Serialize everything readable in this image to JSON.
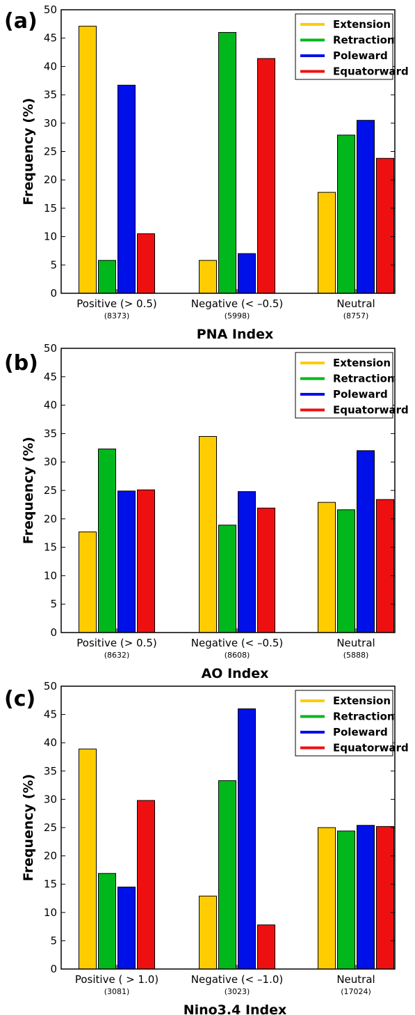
{
  "colors": {
    "Extension": "#ffcc00",
    "Retraction": "#00b81c",
    "Poleward": "#0010e8",
    "Equatorward": "#ee1010"
  },
  "chart_data": [
    {
      "type": "bar",
      "panel": "(a)",
      "title": "",
      "xlabel": "PNA Index",
      "ylabel": "Frequency (%)",
      "ylim": [
        0,
        50
      ],
      "yticks": [
        0,
        5,
        10,
        15,
        20,
        25,
        30,
        35,
        40,
        45,
        50
      ],
      "categories": [
        "Positive (> 0.5)",
        "Negative (< –0.5)",
        "Neutral"
      ],
      "counts": [
        "(8373)",
        "(5998)",
        "(8757)"
      ],
      "legend": "top-right",
      "series": [
        {
          "name": "Extension",
          "values": [
            47.1,
            5.8,
            17.8
          ]
        },
        {
          "name": "Retraction",
          "values": [
            5.8,
            46.0,
            27.9
          ]
        },
        {
          "name": "Poleward",
          "values": [
            36.7,
            7.0,
            30.5
          ]
        },
        {
          "name": "Equatorward",
          "values": [
            10.5,
            41.4,
            23.8
          ]
        }
      ]
    },
    {
      "type": "bar",
      "panel": "(b)",
      "title": "",
      "xlabel": "AO Index",
      "ylabel": "Frequency (%)",
      "ylim": [
        0,
        50
      ],
      "yticks": [
        0,
        5,
        10,
        15,
        20,
        25,
        30,
        35,
        40,
        45,
        50
      ],
      "categories": [
        "Positive (> 0.5)",
        "Negative (< –0.5)",
        "Neutral"
      ],
      "counts": [
        "(8632)",
        "(8608)",
        "(5888)"
      ],
      "legend": "top-right",
      "series": [
        {
          "name": "Extension",
          "values": [
            17.7,
            34.5,
            22.9
          ]
        },
        {
          "name": "Retraction",
          "values": [
            32.3,
            18.9,
            21.6
          ]
        },
        {
          "name": "Poleward",
          "values": [
            24.9,
            24.8,
            32.0
          ]
        },
        {
          "name": "Equatorward",
          "values": [
            25.1,
            21.9,
            23.4
          ]
        }
      ]
    },
    {
      "type": "bar",
      "panel": "(c)",
      "title": "",
      "xlabel": "Nino3.4 Index",
      "ylabel": "Frequency (%)",
      "ylim": [
        0,
        50
      ],
      "yticks": [
        0,
        5,
        10,
        15,
        20,
        25,
        30,
        35,
        40,
        45,
        50
      ],
      "categories": [
        "Positive ( > 1.0)",
        "Negative (< –1.0)",
        "Neutral"
      ],
      "counts": [
        "(3081)",
        "(3023)",
        "(17024)"
      ],
      "legend": "top-right",
      "series": [
        {
          "name": "Extension",
          "values": [
            38.9,
            12.9,
            25.0
          ]
        },
        {
          "name": "Retraction",
          "values": [
            16.9,
            33.3,
            24.4
          ]
        },
        {
          "name": "Poleward",
          "values": [
            14.5,
            46.0,
            25.4
          ]
        },
        {
          "name": "Equatorward",
          "values": [
            29.8,
            7.8,
            25.2
          ]
        }
      ]
    }
  ]
}
